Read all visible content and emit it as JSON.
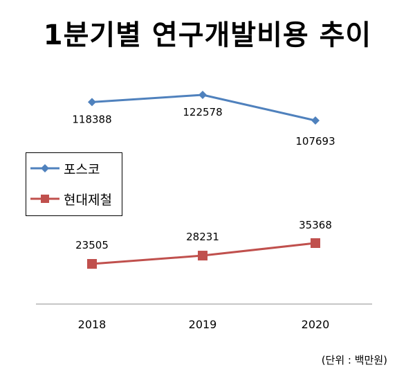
{
  "chart_data": {
    "type": "line",
    "title": "1분기별 연구개발비용 추이",
    "unit_note": "(단위 : 백만원)",
    "categories": [
      "2018",
      "2019",
      "2020"
    ],
    "series": [
      {
        "name": "포스코",
        "color": "#4F81BD",
        "marker": "diamond",
        "values": [
          118388,
          122578,
          107693
        ]
      },
      {
        "name": "현대제철",
        "color": "#C0504D",
        "marker": "square",
        "values": [
          23505,
          28231,
          35368
        ]
      }
    ],
    "legend_position": "left",
    "grid": false
  }
}
